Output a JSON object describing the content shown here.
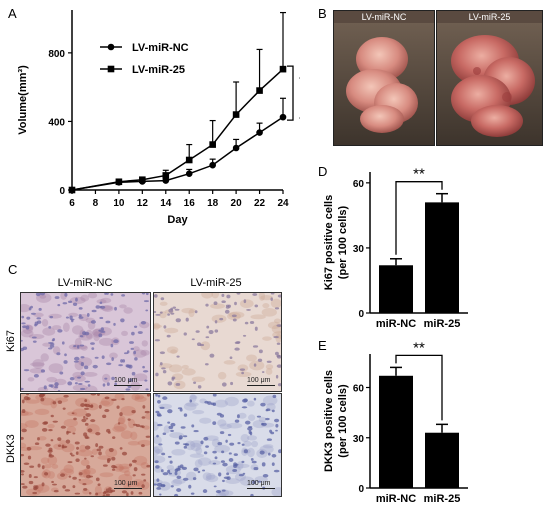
{
  "panels": {
    "A": {
      "letter": "A",
      "ylabel": "Volume(mm³)",
      "xlabel": "Day",
      "legend": [
        "LV-miR-NC",
        "LV-miR-25"
      ],
      "stars": [
        "*",
        "*"
      ]
    },
    "B": {
      "letter": "B",
      "labels": [
        "LV-miR-NC",
        "LV-miR-25"
      ]
    },
    "C": {
      "letter": "C",
      "col_labels": [
        "LV-miR-NC",
        "LV-miR-25"
      ],
      "row_labels": [
        "Ki67",
        "DKK3"
      ],
      "scale_label": "100 μm"
    },
    "D": {
      "letter": "D",
      "ylabel_line1": "Ki67 positive cells",
      "ylabel_line2": "(per 100 cells)",
      "stars": "**"
    },
    "E": {
      "letter": "E",
      "ylabel_line1": "DKK3 positive cells",
      "ylabel_line2": "(per 100 cells)",
      "stars": "**"
    }
  },
  "chart_data": [
    {
      "type": "line",
      "panel": "A",
      "x": [
        6,
        10,
        12,
        14,
        16,
        18,
        20,
        22,
        24
      ],
      "xticks": [
        6,
        8,
        10,
        12,
        14,
        16,
        18,
        20,
        22,
        24
      ],
      "xlim": [
        6,
        24
      ],
      "ylim": [
        0,
        1050
      ],
      "yticks": [
        0,
        400,
        800
      ],
      "xlabel": "Day",
      "ylabel": "Volume(mm³)",
      "legend_position": "top-left",
      "series": [
        {
          "name": "LV-miR-NC",
          "marker": "circle",
          "values": [
            0,
            45,
            50,
            55,
            95,
            145,
            245,
            335,
            425
          ],
          "errors": [
            0,
            5,
            8,
            10,
            25,
            35,
            50,
            55,
            110
          ]
        },
        {
          "name": "LV-miR-25",
          "marker": "square",
          "values": [
            0,
            48,
            60,
            85,
            175,
            265,
            440,
            580,
            705
          ],
          "errors": [
            0,
            8,
            15,
            30,
            90,
            140,
            190,
            240,
            330
          ]
        }
      ]
    },
    {
      "type": "bar",
      "panel": "D",
      "categories": [
        "miR-NC",
        "miR-25"
      ],
      "values": [
        22,
        51
      ],
      "errors": [
        3,
        4
      ],
      "ylim": [
        0,
        65
      ],
      "yticks": [
        0,
        30,
        60
      ],
      "ylabel": "Ki67 positive cells (per 100 cells)"
    },
    {
      "type": "bar",
      "panel": "E",
      "categories": [
        "miR-NC",
        "miR-25"
      ],
      "values": [
        67,
        33
      ],
      "errors": [
        5,
        5
      ],
      "ylim": [
        0,
        80
      ],
      "yticks": [
        0,
        30,
        60
      ],
      "ylabel": "DKK3 positive cells (per 100 cells)"
    }
  ]
}
